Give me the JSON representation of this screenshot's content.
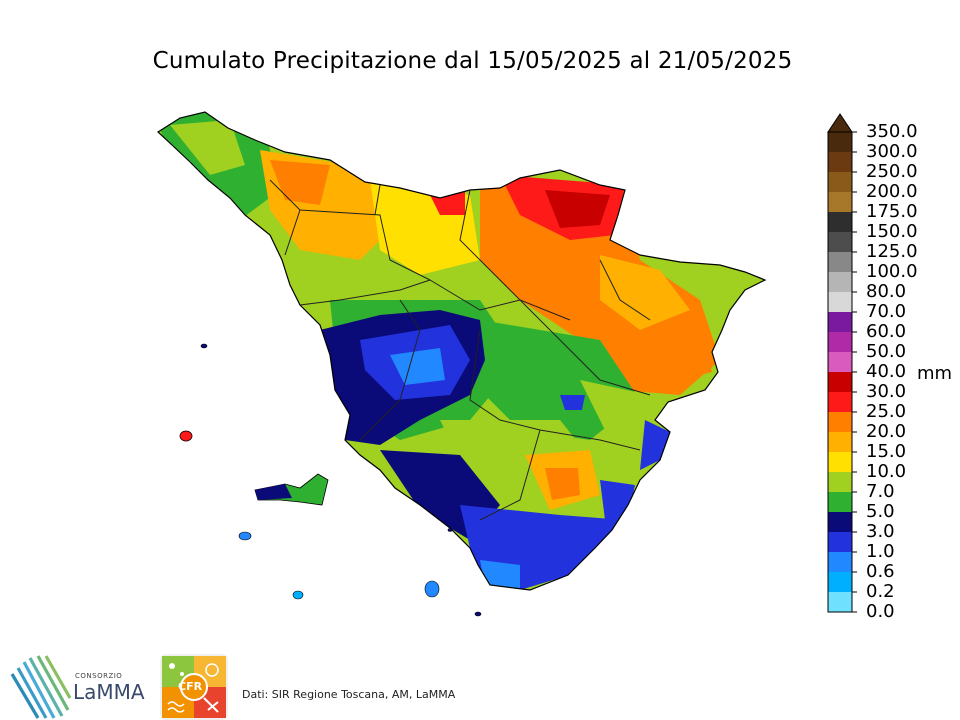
{
  "title": "Cumulato Precipitazione dal 15/05/2025 al 21/05/2025",
  "legend": {
    "unit": "mm",
    "ticks": [
      "350.0",
      "300.0",
      "250.0",
      "200.0",
      "175.0",
      "150.0",
      "125.0",
      "100.0",
      "80.0",
      "70.0",
      "60.0",
      "50.0",
      "40.0",
      "30.0",
      "25.0",
      "20.0",
      "15.0",
      "10.0",
      "7.0",
      "5.0",
      "3.0",
      "1.0",
      "0.6",
      "0.2",
      "0.0"
    ],
    "colors": [
      "#4a2a0c",
      "#6b3a10",
      "#8a5a1a",
      "#a8782a",
      "#2e2e2e",
      "#4d4d4d",
      "#888888",
      "#b5b5b5",
      "#d8d8d8",
      "#7a1a9e",
      "#b02aa8",
      "#d95bbd",
      "#c80000",
      "#ff1a1a",
      "#ff7f00",
      "#ffb000",
      "#ffe000",
      "#a0d020",
      "#30b030",
      "#0a0a78",
      "#2233dd",
      "#2288ff",
      "#00b0ff",
      "#70e0ff",
      "#d0ffff"
    ]
  },
  "logos": {
    "lamma_consorzio": "CONSORZIO",
    "lamma_name": "LaMMA",
    "cfr": "CFR"
  },
  "credits": "Dati: SIR Regione Toscana, AM, LaMMA"
}
